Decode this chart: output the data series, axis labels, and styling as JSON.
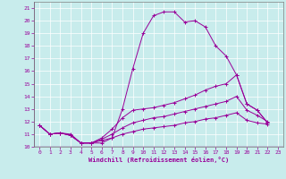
{
  "xlabel": "Windchill (Refroidissement éolien,°C)",
  "bg_color": "#c8ecec",
  "line_color": "#990099",
  "xlim": [
    -0.5,
    23.5
  ],
  "ylim": [
    10,
    21.5
  ],
  "yticks": [
    10,
    11,
    12,
    13,
    14,
    15,
    16,
    17,
    18,
    19,
    20,
    21
  ],
  "xticks": [
    0,
    1,
    2,
    3,
    4,
    5,
    6,
    7,
    8,
    9,
    10,
    11,
    12,
    13,
    14,
    15,
    16,
    17,
    18,
    19,
    20,
    21,
    22,
    23
  ],
  "series": [
    {
      "x": [
        0,
        1,
        2,
        3,
        4,
        5,
        6,
        7,
        8,
        9,
        10,
        11,
        12,
        13,
        14,
        15,
        16,
        17,
        18,
        19,
        20,
        21,
        22
      ],
      "y": [
        11.7,
        11.0,
        11.1,
        11.0,
        10.3,
        10.3,
        10.3,
        10.7,
        13.0,
        16.2,
        19.0,
        20.4,
        20.7,
        20.7,
        19.9,
        20.0,
        19.5,
        18.0,
        17.2,
        15.7,
        13.4,
        12.9,
        11.9
      ]
    },
    {
      "x": [
        0,
        1,
        2,
        3,
        4,
        5,
        6,
        7,
        8,
        9,
        10,
        11,
        12,
        13,
        14,
        15,
        16,
        17,
        18,
        19,
        20,
        21,
        22
      ],
      "y": [
        11.7,
        11.0,
        11.1,
        10.9,
        10.3,
        10.3,
        10.7,
        11.4,
        12.3,
        12.9,
        13.0,
        13.1,
        13.3,
        13.5,
        13.8,
        14.1,
        14.5,
        14.8,
        15.0,
        15.7,
        13.4,
        12.9,
        11.9
      ]
    },
    {
      "x": [
        0,
        1,
        2,
        3,
        4,
        5,
        6,
        7,
        8,
        9,
        10,
        11,
        12,
        13,
        14,
        15,
        16,
        17,
        18,
        19,
        20,
        21,
        22
      ],
      "y": [
        11.7,
        11.0,
        11.1,
        10.9,
        10.3,
        10.3,
        10.6,
        11.0,
        11.5,
        11.9,
        12.1,
        12.3,
        12.4,
        12.6,
        12.8,
        13.0,
        13.2,
        13.4,
        13.6,
        14.0,
        12.9,
        12.5,
        12.0
      ]
    },
    {
      "x": [
        0,
        1,
        2,
        3,
        4,
        5,
        6,
        7,
        8,
        9,
        10,
        11,
        12,
        13,
        14,
        15,
        16,
        17,
        18,
        19,
        20,
        21,
        22
      ],
      "y": [
        11.7,
        11.0,
        11.1,
        10.9,
        10.3,
        10.3,
        10.5,
        10.7,
        11.0,
        11.2,
        11.4,
        11.5,
        11.6,
        11.7,
        11.9,
        12.0,
        12.2,
        12.3,
        12.5,
        12.7,
        12.1,
        11.9,
        11.8
      ]
    }
  ]
}
